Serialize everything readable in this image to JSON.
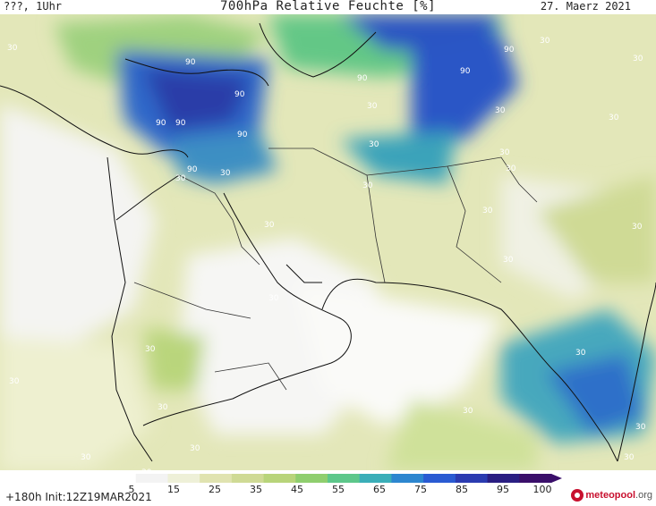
{
  "header": {
    "left": "???, 1Uhr",
    "title": "700hPa Relative Feuchte [%]",
    "date": "27. Maerz 2021"
  },
  "footer": {
    "run_info": "+180h  Init:12Z19MAR2021"
  },
  "logo": {
    "text": "meteopool",
    "suffix": ".org"
  },
  "colorbar": {
    "ticks": [
      "5",
      "15",
      "25",
      "35",
      "45",
      "55",
      "65",
      "75",
      "85",
      "95",
      "100"
    ],
    "colors": [
      "#ffffff",
      "#f3f3f3",
      "#eef0d8",
      "#e0e3b0",
      "#cfda95",
      "#b8d47a",
      "#8fce6e",
      "#5dc78a",
      "#3aaeb8",
      "#2d86cf",
      "#2a5bd2",
      "#2b3bb0",
      "#2a1e82",
      "#3a0f6a"
    ]
  },
  "contour_labels": {
    "labels": [
      "90",
      "90",
      "90",
      "90",
      "90",
      "90",
      "90",
      "90",
      "90",
      "30",
      "30",
      "30",
      "30",
      "30",
      "30",
      "30",
      "30",
      "30",
      "30",
      "30",
      "30",
      "30",
      "30",
      "30",
      "30",
      "30",
      "30",
      "30",
      "30",
      "30",
      "30",
      "30",
      "30",
      "30",
      "30",
      "30"
    ]
  },
  "map": {
    "region": "Middle East / Arabian Peninsula / South Asia",
    "field": "relative humidity 700hPa"
  }
}
